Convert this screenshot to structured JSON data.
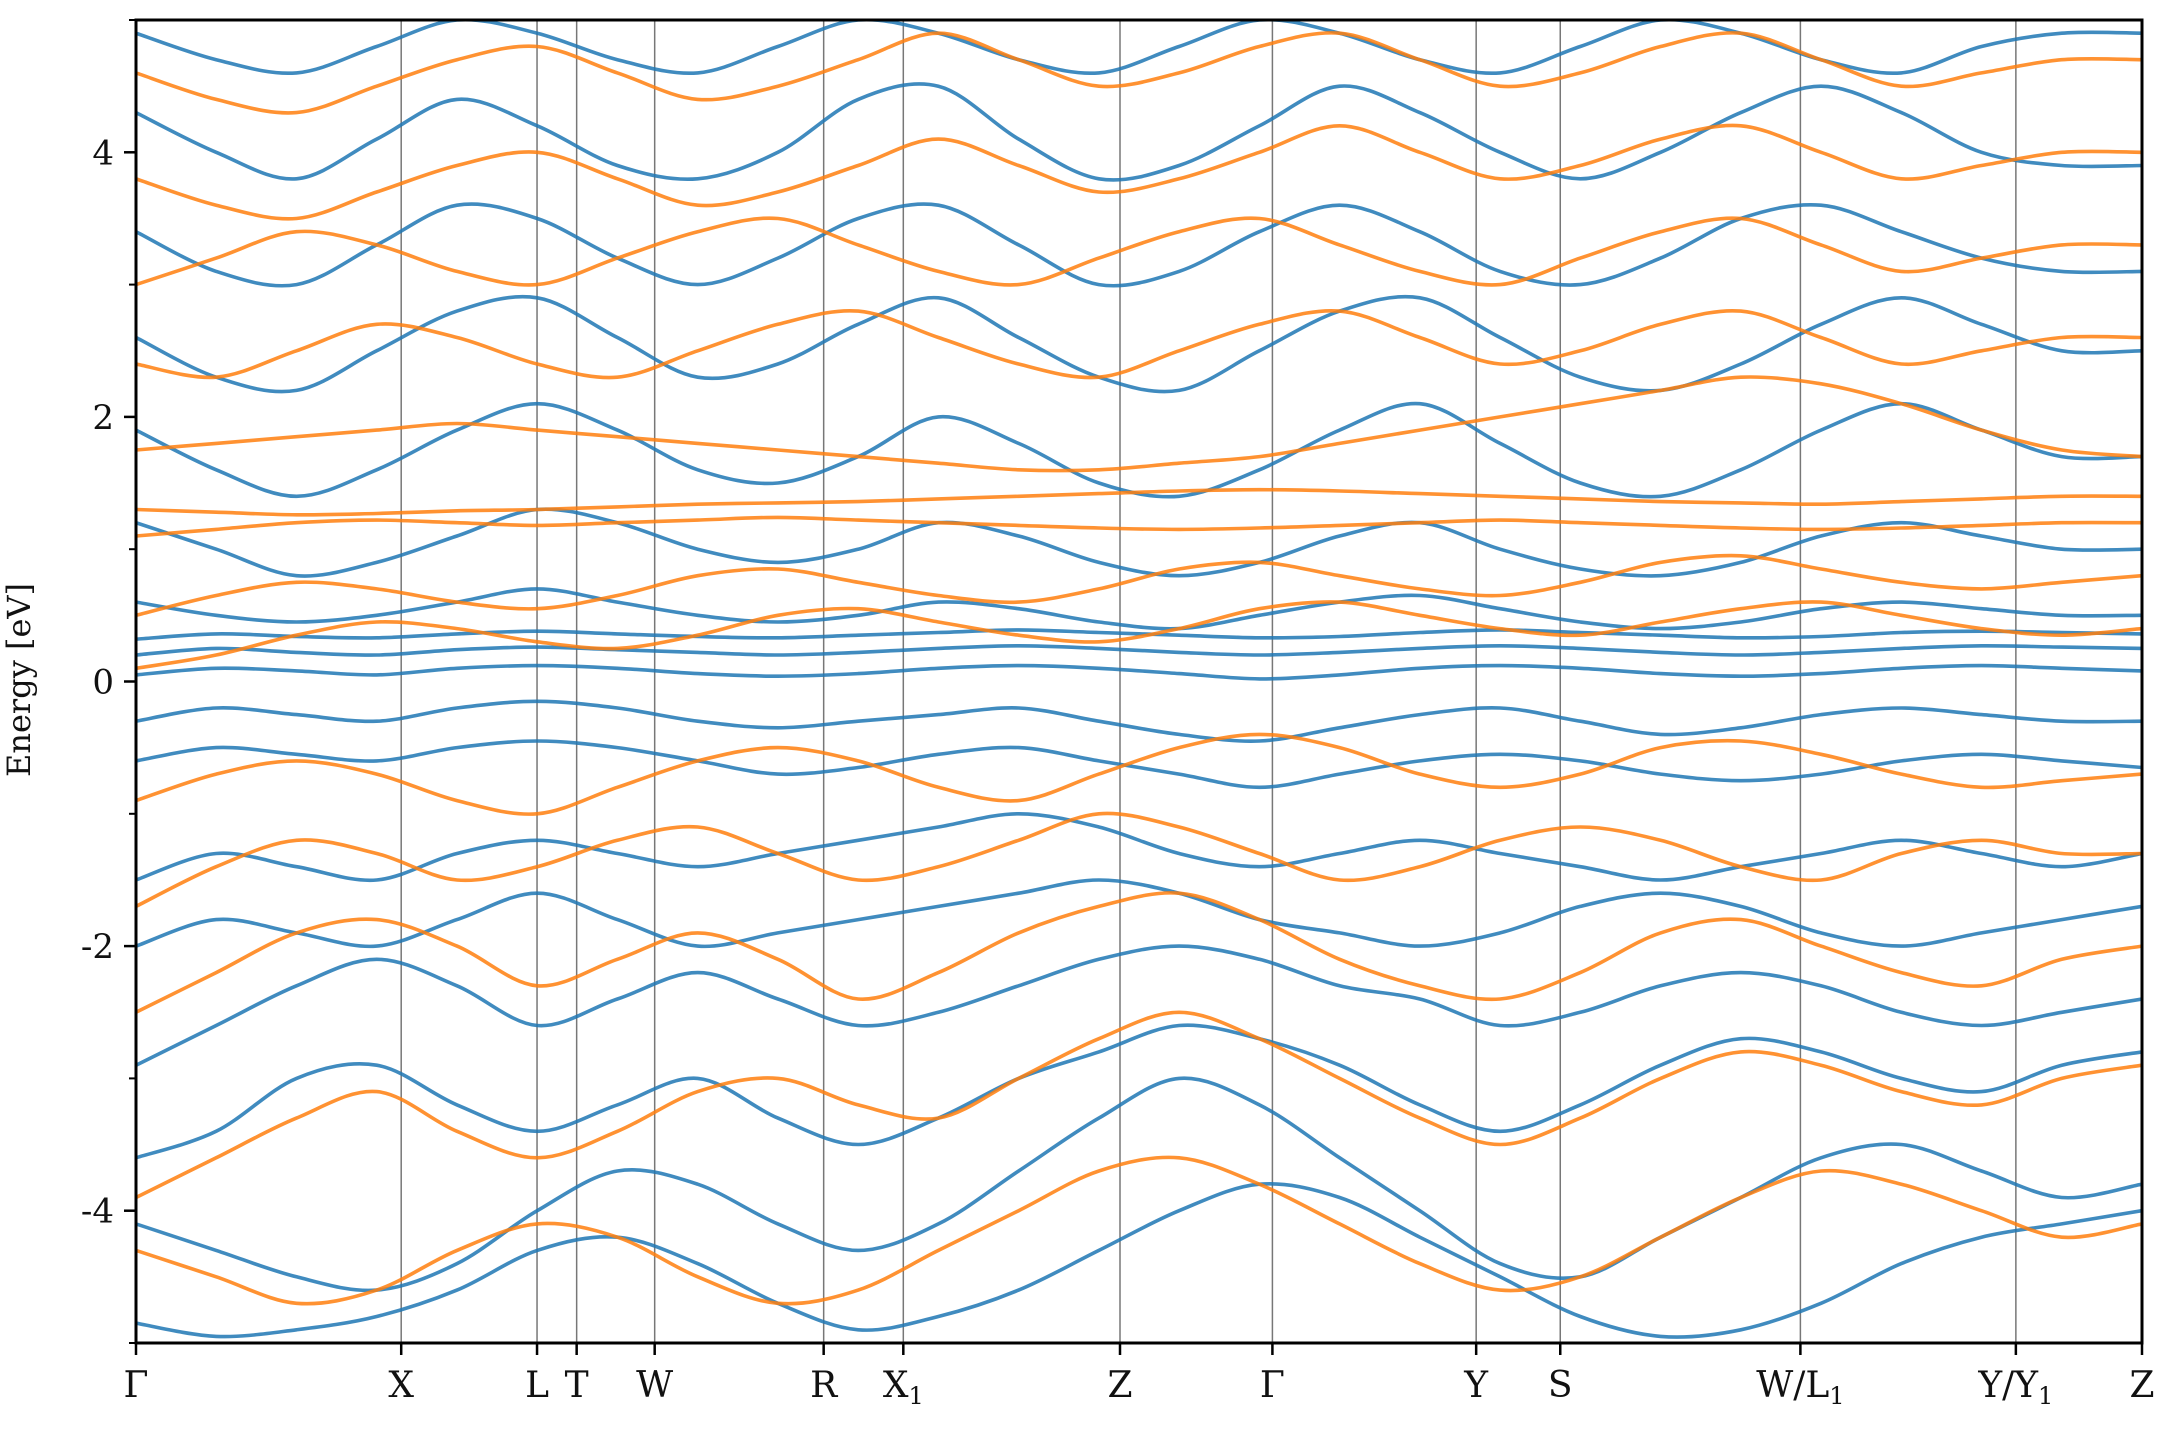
{
  "chart_data": {
    "type": "line",
    "title": "",
    "xlabel": "",
    "ylabel": "Energy [eV]",
    "ylim": [
      -5,
      5
    ],
    "yticks": [
      -4,
      -2,
      0,
      2,
      4
    ],
    "yticks_minor": [
      -5,
      -3,
      -1,
      1,
      3,
      5
    ],
    "grid": false,
    "legend": "none",
    "colors": {
      "series_a": "#1f77b4",
      "series_b": "#ff7f0e",
      "kpath_line": "#555555",
      "axis": "#000000"
    },
    "kpath": [
      {
        "label": "Γ",
        "sub": "",
        "x": 0.0
      },
      {
        "label": "X",
        "sub": "",
        "x": 0.656
      },
      {
        "label": "L",
        "sub": "",
        "x": 0.992
      },
      {
        "label": "T",
        "sub": "",
        "x": 1.09
      },
      {
        "label": "W",
        "sub": "",
        "x": 1.283
      },
      {
        "label": "R",
        "sub": "",
        "x": 1.701
      },
      {
        "label": "X",
        "sub": "1",
        "x": 1.898
      },
      {
        "label": "Z",
        "sub": "",
        "x": 2.434
      },
      {
        "label": "Γ",
        "sub": "",
        "x": 2.811
      },
      {
        "label": "Y",
        "sub": "",
        "x": 3.315
      },
      {
        "label": "S",
        "sub": "",
        "x": 3.523
      },
      {
        "label": "W/L",
        "sub": "1",
        "x": 4.117
      },
      {
        "label": "Y/Y",
        "sub": "1",
        "x": 4.65
      },
      {
        "label": "Z",
        "sub": "",
        "x": 4.962
      }
    ],
    "discontinuity_at": 4.117,
    "series": [
      {
        "color_key": "series_a",
        "bands": [
          [
            -4.85,
            -4.95,
            -4.9,
            -4.8,
            -4.6,
            -4.3,
            -4.2,
            -4.4,
            -4.7,
            -4.9,
            -4.8,
            -4.6,
            -4.3,
            -4.0,
            -3.8,
            -3.9,
            -4.2,
            -4.5,
            -4.8,
            -4.95,
            -4.9,
            -4.7,
            -4.4,
            -4.2,
            -4.1,
            -4.0
          ],
          [
            -4.1,
            -4.3,
            -4.5,
            -4.6,
            -4.4,
            -4.0,
            -3.7,
            -3.8,
            -4.1,
            -4.3,
            -4.1,
            -3.7,
            -3.3,
            -3.0,
            -3.2,
            -3.6,
            -4.0,
            -4.4,
            -4.5,
            -4.2,
            -3.9,
            -3.6,
            -3.5,
            -3.7,
            -3.9,
            -3.8
          ],
          [
            -3.6,
            -3.4,
            -3.0,
            -2.9,
            -3.2,
            -3.4,
            -3.2,
            -3.0,
            -3.3,
            -3.5,
            -3.3,
            -3.0,
            -2.8,
            -2.6,
            -2.7,
            -2.9,
            -3.2,
            -3.4,
            -3.2,
            -2.9,
            -2.7,
            -2.8,
            -3.0,
            -3.1,
            -2.9,
            -2.8
          ],
          [
            -2.9,
            -2.6,
            -2.3,
            -2.1,
            -2.3,
            -2.6,
            -2.4,
            -2.2,
            -2.4,
            -2.6,
            -2.5,
            -2.3,
            -2.1,
            -2.0,
            -2.1,
            -2.3,
            -2.4,
            -2.6,
            -2.5,
            -2.3,
            -2.2,
            -2.3,
            -2.5,
            -2.6,
            -2.5,
            -2.4
          ],
          [
            -2.0,
            -1.8,
            -1.9,
            -2.0,
            -1.8,
            -1.6,
            -1.8,
            -2.0,
            -1.9,
            -1.8,
            -1.7,
            -1.6,
            -1.5,
            -1.6,
            -1.8,
            -1.9,
            -2.0,
            -1.9,
            -1.7,
            -1.6,
            -1.7,
            -1.9,
            -2.0,
            -1.9,
            -1.8,
            -1.7
          ],
          [
            -1.5,
            -1.3,
            -1.4,
            -1.5,
            -1.3,
            -1.2,
            -1.3,
            -1.4,
            -1.3,
            -1.2,
            -1.1,
            -1.0,
            -1.1,
            -1.3,
            -1.4,
            -1.3,
            -1.2,
            -1.3,
            -1.4,
            -1.5,
            -1.4,
            -1.3,
            -1.2,
            -1.3,
            -1.4,
            -1.3
          ],
          [
            -0.6,
            -0.5,
            -0.55,
            -0.6,
            -0.5,
            -0.45,
            -0.5,
            -0.6,
            -0.7,
            -0.65,
            -0.55,
            -0.5,
            -0.6,
            -0.7,
            -0.8,
            -0.7,
            -0.6,
            -0.55,
            -0.6,
            -0.7,
            -0.75,
            -0.7,
            -0.6,
            -0.55,
            -0.6,
            -0.65
          ],
          [
            -0.3,
            -0.2,
            -0.25,
            -0.3,
            -0.2,
            -0.15,
            -0.2,
            -0.3,
            -0.35,
            -0.3,
            -0.25,
            -0.2,
            -0.3,
            -0.4,
            -0.45,
            -0.35,
            -0.25,
            -0.2,
            -0.3,
            -0.4,
            -0.35,
            -0.25,
            -0.2,
            -0.25,
            -0.3,
            -0.3
          ],
          [
            0.05,
            0.1,
            0.08,
            0.05,
            0.1,
            0.12,
            0.1,
            0.06,
            0.04,
            0.06,
            0.1,
            0.12,
            0.1,
            0.06,
            0.02,
            0.05,
            0.1,
            0.12,
            0.1,
            0.06,
            0.04,
            0.06,
            0.1,
            0.12,
            0.1,
            0.08
          ],
          [
            0.2,
            0.25,
            0.22,
            0.2,
            0.24,
            0.26,
            0.24,
            0.22,
            0.2,
            0.22,
            0.25,
            0.27,
            0.25,
            0.22,
            0.2,
            0.22,
            0.25,
            0.27,
            0.25,
            0.22,
            0.2,
            0.22,
            0.25,
            0.27,
            0.26,
            0.25
          ],
          [
            0.32,
            0.36,
            0.34,
            0.33,
            0.36,
            0.38,
            0.36,
            0.34,
            0.33,
            0.35,
            0.37,
            0.39,
            0.37,
            0.35,
            0.33,
            0.34,
            0.37,
            0.39,
            0.37,
            0.35,
            0.33,
            0.34,
            0.37,
            0.38,
            0.37,
            0.36
          ],
          [
            0.6,
            0.5,
            0.45,
            0.5,
            0.6,
            0.7,
            0.6,
            0.5,
            0.45,
            0.5,
            0.6,
            0.55,
            0.45,
            0.4,
            0.5,
            0.6,
            0.65,
            0.55,
            0.45,
            0.4,
            0.45,
            0.55,
            0.6,
            0.55,
            0.5,
            0.5
          ],
          [
            1.2,
            1.0,
            0.8,
            0.9,
            1.1,
            1.3,
            1.2,
            1.0,
            0.9,
            1.0,
            1.2,
            1.1,
            0.9,
            0.8,
            0.9,
            1.1,
            1.2,
            1.0,
            0.85,
            0.8,
            0.9,
            1.1,
            1.2,
            1.1,
            1.0,
            1.0
          ],
          [
            1.9,
            1.6,
            1.4,
            1.6,
            1.9,
            2.1,
            1.9,
            1.6,
            1.5,
            1.7,
            2.0,
            1.8,
            1.5,
            1.4,
            1.6,
            1.9,
            2.1,
            1.8,
            1.5,
            1.4,
            1.6,
            1.9,
            2.1,
            1.9,
            1.7,
            1.7
          ],
          [
            2.6,
            2.3,
            2.2,
            2.5,
            2.8,
            2.9,
            2.6,
            2.3,
            2.4,
            2.7,
            2.9,
            2.6,
            2.3,
            2.2,
            2.5,
            2.8,
            2.9,
            2.6,
            2.3,
            2.2,
            2.4,
            2.7,
            2.9,
            2.7,
            2.5,
            2.5
          ],
          [
            3.4,
            3.1,
            3.0,
            3.3,
            3.6,
            3.5,
            3.2,
            3.0,
            3.2,
            3.5,
            3.6,
            3.3,
            3.0,
            3.1,
            3.4,
            3.6,
            3.4,
            3.1,
            3.0,
            3.2,
            3.5,
            3.6,
            3.4,
            3.2,
            3.1,
            3.1
          ],
          [
            4.3,
            4.0,
            3.8,
            4.1,
            4.4,
            4.2,
            3.9,
            3.8,
            4.0,
            4.4,
            4.5,
            4.1,
            3.8,
            3.9,
            4.2,
            4.5,
            4.3,
            4.0,
            3.8,
            4.0,
            4.3,
            4.5,
            4.3,
            4.0,
            3.9,
            3.9
          ],
          [
            4.9,
            4.7,
            4.6,
            4.8,
            5.0,
            4.9,
            4.7,
            4.6,
            4.8,
            5.0,
            4.9,
            4.7,
            4.6,
            4.8,
            5.0,
            4.9,
            4.7,
            4.6,
            4.8,
            5.0,
            4.9,
            4.7,
            4.6,
            4.8,
            4.9,
            4.9
          ]
        ]
      },
      {
        "color_key": "series_b",
        "bands": [
          [
            -4.3,
            -4.5,
            -4.7,
            -4.6,
            -4.3,
            -4.1,
            -4.2,
            -4.5,
            -4.7,
            -4.6,
            -4.3,
            -4.0,
            -3.7,
            -3.6,
            -3.8,
            -4.1,
            -4.4,
            -4.6,
            -4.5,
            -4.2,
            -3.9,
            -3.7,
            -3.8,
            -4.0,
            -4.2,
            -4.1
          ],
          [
            -3.9,
            -3.6,
            -3.3,
            -3.1,
            -3.4,
            -3.6,
            -3.4,
            -3.1,
            -3.0,
            -3.2,
            -3.3,
            -3.0,
            -2.7,
            -2.5,
            -2.7,
            -3.0,
            -3.3,
            -3.5,
            -3.3,
            -3.0,
            -2.8,
            -2.9,
            -3.1,
            -3.2,
            -3.0,
            -2.9
          ],
          [
            -2.5,
            -2.2,
            -1.9,
            -1.8,
            -2.0,
            -2.3,
            -2.1,
            -1.9,
            -2.1,
            -2.4,
            -2.2,
            -1.9,
            -1.7,
            -1.6,
            -1.8,
            -2.1,
            -2.3,
            -2.4,
            -2.2,
            -1.9,
            -1.8,
            -2.0,
            -2.2,
            -2.3,
            -2.1,
            -2.0
          ],
          [
            -1.7,
            -1.4,
            -1.2,
            -1.3,
            -1.5,
            -1.4,
            -1.2,
            -1.1,
            -1.3,
            -1.5,
            -1.4,
            -1.2,
            -1.0,
            -1.1,
            -1.3,
            -1.5,
            -1.4,
            -1.2,
            -1.1,
            -1.2,
            -1.4,
            -1.5,
            -1.3,
            -1.2,
            -1.3,
            -1.3
          ],
          [
            -0.9,
            -0.7,
            -0.6,
            -0.7,
            -0.9,
            -1.0,
            -0.8,
            -0.6,
            -0.5,
            -0.6,
            -0.8,
            -0.9,
            -0.7,
            -0.5,
            -0.4,
            -0.5,
            -0.7,
            -0.8,
            -0.7,
            -0.5,
            -0.45,
            -0.55,
            -0.7,
            -0.8,
            -0.75,
            -0.7
          ],
          [
            0.1,
            0.2,
            0.35,
            0.45,
            0.4,
            0.3,
            0.25,
            0.35,
            0.5,
            0.55,
            0.45,
            0.35,
            0.3,
            0.4,
            0.55,
            0.6,
            0.5,
            0.4,
            0.35,
            0.45,
            0.55,
            0.6,
            0.5,
            0.4,
            0.35,
            0.4
          ],
          [
            0.5,
            0.65,
            0.75,
            0.7,
            0.6,
            0.55,
            0.65,
            0.8,
            0.85,
            0.75,
            0.65,
            0.6,
            0.7,
            0.85,
            0.9,
            0.8,
            0.7,
            0.65,
            0.75,
            0.9,
            0.95,
            0.85,
            0.75,
            0.7,
            0.75,
            0.8
          ],
          [
            1.1,
            1.15,
            1.2,
            1.22,
            1.2,
            1.18,
            1.2,
            1.22,
            1.24,
            1.22,
            1.2,
            1.18,
            1.16,
            1.15,
            1.16,
            1.18,
            1.2,
            1.22,
            1.2,
            1.18,
            1.16,
            1.15,
            1.16,
            1.18,
            1.2,
            1.2
          ],
          [
            1.3,
            1.28,
            1.26,
            1.27,
            1.29,
            1.3,
            1.32,
            1.34,
            1.35,
            1.36,
            1.38,
            1.4,
            1.42,
            1.44,
            1.45,
            1.44,
            1.42,
            1.4,
            1.38,
            1.36,
            1.35,
            1.34,
            1.36,
            1.38,
            1.4,
            1.4
          ],
          [
            1.75,
            1.8,
            1.85,
            1.9,
            1.95,
            1.9,
            1.85,
            1.8,
            1.75,
            1.7,
            1.65,
            1.6,
            1.6,
            1.65,
            1.7,
            1.8,
            1.9,
            2.0,
            2.1,
            2.2,
            2.3,
            2.25,
            2.1,
            1.9,
            1.75,
            1.7
          ],
          [
            2.4,
            2.3,
            2.5,
            2.7,
            2.6,
            2.4,
            2.3,
            2.5,
            2.7,
            2.8,
            2.6,
            2.4,
            2.3,
            2.5,
            2.7,
            2.8,
            2.6,
            2.4,
            2.5,
            2.7,
            2.8,
            2.6,
            2.4,
            2.5,
            2.6,
            2.6
          ],
          [
            3.0,
            3.2,
            3.4,
            3.3,
            3.1,
            3.0,
            3.2,
            3.4,
            3.5,
            3.3,
            3.1,
            3.0,
            3.2,
            3.4,
            3.5,
            3.3,
            3.1,
            3.0,
            3.2,
            3.4,
            3.5,
            3.3,
            3.1,
            3.2,
            3.3,
            3.3
          ],
          [
            3.8,
            3.6,
            3.5,
            3.7,
            3.9,
            4.0,
            3.8,
            3.6,
            3.7,
            3.9,
            4.1,
            3.9,
            3.7,
            3.8,
            4.0,
            4.2,
            4.0,
            3.8,
            3.9,
            4.1,
            4.2,
            4.0,
            3.8,
            3.9,
            4.0,
            4.0
          ],
          [
            4.6,
            4.4,
            4.3,
            4.5,
            4.7,
            4.8,
            4.6,
            4.4,
            4.5,
            4.7,
            4.9,
            4.7,
            4.5,
            4.6,
            4.8,
            4.9,
            4.7,
            4.5,
            4.6,
            4.8,
            4.9,
            4.7,
            4.5,
            4.6,
            4.7,
            4.7
          ]
        ]
      }
    ]
  }
}
